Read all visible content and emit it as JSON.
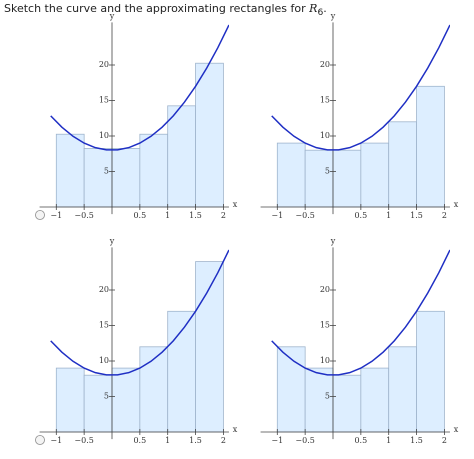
{
  "prompt": {
    "text": "Sketch the curve and the approximating rectangles for",
    "symbol": "R",
    "subscript": "6",
    "end": "."
  },
  "chart_data": [
    {
      "type": "histogram",
      "bins": [
        -1,
        -0.5,
        0,
        0.5,
        1,
        1.5,
        2
      ],
      "values": [
        10.25,
        8.25,
        8.25,
        10.25,
        14.25,
        20.25
      ],
      "color": "#ddeeff",
      "curve": {
        "x": [
          -1.1,
          -0.9,
          -0.7,
          -0.5,
          -0.3,
          -0.1,
          0.1,
          0.3,
          0.5,
          0.7,
          0.9,
          1.1,
          1.3,
          1.5,
          1.7,
          1.9,
          2.1
        ],
        "values": [
          12.84,
          11.24,
          9.96,
          9,
          8.36,
          8.04,
          8.04,
          8.36,
          9,
          9.96,
          11.24,
          12.84,
          14.76,
          17,
          19.56,
          22.44,
          25.64
        ],
        "color": "#1f2fc4"
      },
      "x_label": "x",
      "y_label": "y",
      "xlim": [
        -1.3,
        2.1
      ],
      "ylim": [
        -1,
        26
      ],
      "xticks": [
        {
          "value": -1,
          "label": "−1"
        },
        {
          "value": -0.5,
          "label": "−0.5"
        },
        0.5,
        1,
        1.5,
        2
      ],
      "yticks": [
        5,
        10,
        15,
        20
      ]
    },
    {
      "type": "histogram",
      "bins": [
        -1,
        -0.5,
        0,
        0.5,
        1,
        1.5,
        2
      ],
      "values": [
        9,
        8,
        8,
        9,
        12,
        17
      ],
      "color": "#ddeeff",
      "curve": {
        "x": [
          -1.1,
          -0.9,
          -0.7,
          -0.5,
          -0.3,
          -0.1,
          0.1,
          0.3,
          0.5,
          0.7,
          0.9,
          1.1,
          1.3,
          1.5,
          1.7,
          1.9,
          2.1
        ],
        "values": [
          12.84,
          11.24,
          9.96,
          9,
          8.36,
          8.04,
          8.04,
          8.36,
          9,
          9.96,
          11.24,
          12.84,
          14.76,
          17,
          19.56,
          22.44,
          25.64
        ],
        "color": "#1f2fc4"
      },
      "x_label": "x",
      "y_label": "y",
      "xlim": [
        -1.3,
        2.1
      ],
      "ylim": [
        -1,
        26
      ],
      "xticks": [
        {
          "value": -1,
          "label": "−1"
        },
        {
          "value": -0.5,
          "label": "−0.5"
        },
        0.5,
        1,
        1.5,
        2
      ],
      "yticks": [
        5,
        10,
        15,
        20
      ]
    },
    {
      "type": "histogram",
      "bins": [
        -1,
        -0.5,
        0,
        0.5,
        1,
        1.5,
        2
      ],
      "values": [
        9,
        8,
        9,
        12,
        17,
        24
      ],
      "color": "#ddeeff",
      "curve": {
        "x": [
          -1.1,
          -0.9,
          -0.7,
          -0.5,
          -0.3,
          -0.1,
          0.1,
          0.3,
          0.5,
          0.7,
          0.9,
          1.1,
          1.3,
          1.5,
          1.7,
          1.9,
          2.1
        ],
        "values": [
          12.84,
          11.24,
          9.96,
          9,
          8.36,
          8.04,
          8.04,
          8.36,
          9,
          9.96,
          11.24,
          12.84,
          14.76,
          17,
          19.56,
          22.44,
          25.64
        ],
        "color": "#1f2fc4"
      },
      "x_label": "x",
      "y_label": "y",
      "xlim": [
        -1.3,
        2.1
      ],
      "ylim": [
        -1,
        26
      ],
      "xticks": [
        {
          "value": -1,
          "label": "−1"
        },
        {
          "value": -0.5,
          "label": "−0.5"
        },
        0.5,
        1,
        1.5,
        2
      ],
      "yticks": [
        5,
        10,
        15,
        20
      ]
    },
    {
      "type": "histogram",
      "bins": [
        -1,
        -0.5,
        0,
        0.5,
        1,
        1.5,
        2
      ],
      "values": [
        12,
        9,
        8,
        9,
        12,
        17
      ],
      "color": "#ddeeff",
      "curve": {
        "x": [
          -1.1,
          -0.9,
          -0.7,
          -0.5,
          -0.3,
          -0.1,
          0.1,
          0.3,
          0.5,
          0.7,
          0.9,
          1.1,
          1.3,
          1.5,
          1.7,
          1.9,
          2.1
        ],
        "values": [
          12.84,
          11.24,
          9.96,
          9,
          8.36,
          8.04,
          8.04,
          8.36,
          9,
          9.96,
          11.24,
          12.84,
          14.76,
          17,
          19.56,
          22.44,
          25.64
        ],
        "color": "#1f2fc4"
      },
      "x_label": "x",
      "y_label": "y",
      "xlim": [
        -1.3,
        2.1
      ],
      "ylim": [
        -1,
        26
      ],
      "xticks": [
        {
          "value": -1,
          "label": "−1"
        },
        {
          "value": -0.5,
          "label": "−0.5"
        },
        0.5,
        1,
        1.5,
        2
      ],
      "yticks": [
        5,
        10,
        15,
        20
      ]
    }
  ]
}
